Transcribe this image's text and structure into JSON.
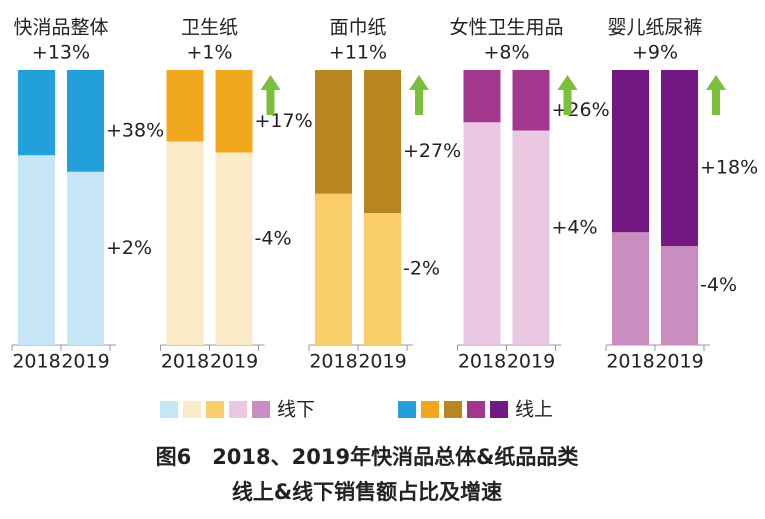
{
  "chart_data": {
    "type": "bar",
    "categories": [
      "2018",
      "2019"
    ],
    "groups": [
      {
        "name": "快消品整体",
        "growth": "+13%",
        "offline_color": "#c6e6f5",
        "online_color": "#23a0dc",
        "offline": [
          69,
          63
        ],
        "online": [
          31,
          37
        ],
        "offline_growth": "+2%",
        "online_growth": "+38%"
      },
      {
        "name": "卫生纸",
        "growth": "+1%",
        "offline_color": "#fbebc8",
        "online_color": "#f2a81d",
        "offline": [
          74,
          70
        ],
        "online": [
          26,
          30
        ],
        "offline_growth": "-4%",
        "online_growth": "+17%"
      },
      {
        "name": "面巾纸",
        "growth": "+11%",
        "offline_color": "#f9cd6a",
        "online_color": "#b8861e",
        "offline": [
          55,
          48
        ],
        "online": [
          45,
          52
        ],
        "offline_growth": "-2%",
        "online_growth": "+27%"
      },
      {
        "name": "女性卫生用品",
        "growth": "+8%",
        "offline_color": "#ebc8e1",
        "online_color": "#a3378d",
        "offline": [
          81,
          78
        ],
        "online": [
          19,
          22
        ],
        "offline_growth": "+4%",
        "online_growth": "+26%"
      },
      {
        "name": "婴儿纸尿裤",
        "growth": "+9%",
        "offline_color": "#c98dbf",
        "online_color": "#741883",
        "offline": [
          41,
          36
        ],
        "online": [
          59,
          64
        ],
        "offline_growth": "-4%",
        "online_growth": "+18%"
      }
    ],
    "legend": {
      "offline": "线下",
      "online": "线上"
    },
    "caption": [
      "图6　2018、2019年快消品总体&纸品品类",
      "线上&线下销售额占比及增速"
    ]
  }
}
